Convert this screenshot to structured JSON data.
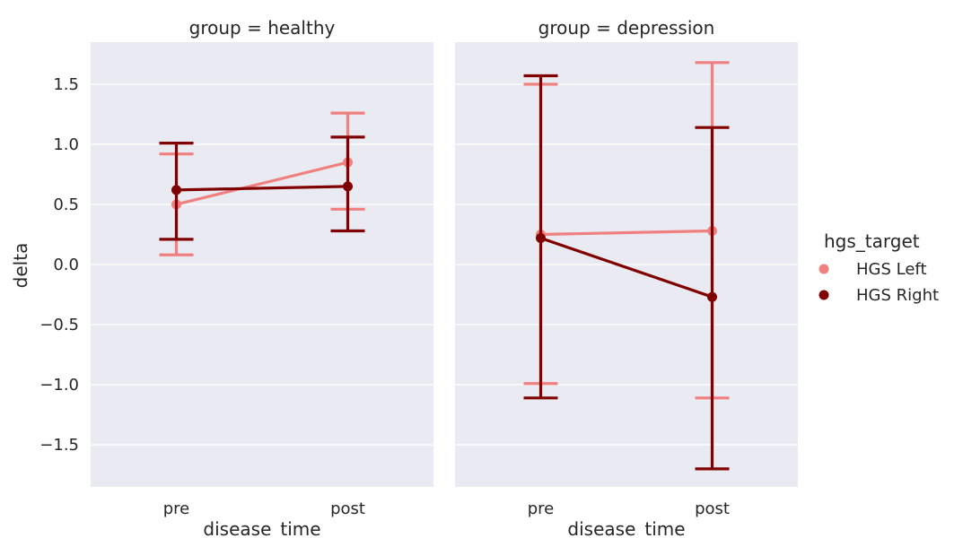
{
  "chart_data": {
    "type": "line",
    "ylabel": "delta",
    "xlabel": "disease_time",
    "categories": [
      "pre",
      "post"
    ],
    "ylim": [
      -1.85,
      1.85
    ],
    "yticks": [
      -1.5,
      -1.0,
      -0.5,
      0.0,
      0.5,
      1.0,
      1.5
    ],
    "ytick_labels": [
      "−1.5",
      "−1.0",
      "−0.5",
      "0.0",
      "0.5",
      "1.0",
      "1.5"
    ],
    "grid": true,
    "legend": {
      "title": "hgs_target",
      "placement": "right",
      "entries": [
        "HGS Left",
        "HGS Right"
      ]
    },
    "facets": [
      {
        "title": "group = healthy",
        "series": [
          {
            "name": "HGS Left",
            "color": "#F08080",
            "values": [
              0.5,
              0.85
            ],
            "ci_low": [
              0.08,
              0.46
            ],
            "ci_high": [
              0.92,
              1.26
            ]
          },
          {
            "name": "HGS Right",
            "color": "#800000",
            "values": [
              0.62,
              0.65
            ],
            "ci_low": [
              0.21,
              0.28
            ],
            "ci_high": [
              1.01,
              1.06
            ]
          }
        ]
      },
      {
        "title": "group = depression",
        "series": [
          {
            "name": "HGS Left",
            "color": "#F08080",
            "values": [
              0.25,
              0.28
            ],
            "ci_low": [
              -0.99,
              -1.11
            ],
            "ci_high": [
              1.5,
              1.68
            ]
          },
          {
            "name": "HGS Right",
            "color": "#800000",
            "values": [
              0.22,
              -0.27
            ],
            "ci_low": [
              -1.11,
              -1.7
            ],
            "ci_high": [
              1.57,
              1.14
            ]
          }
        ]
      }
    ]
  }
}
